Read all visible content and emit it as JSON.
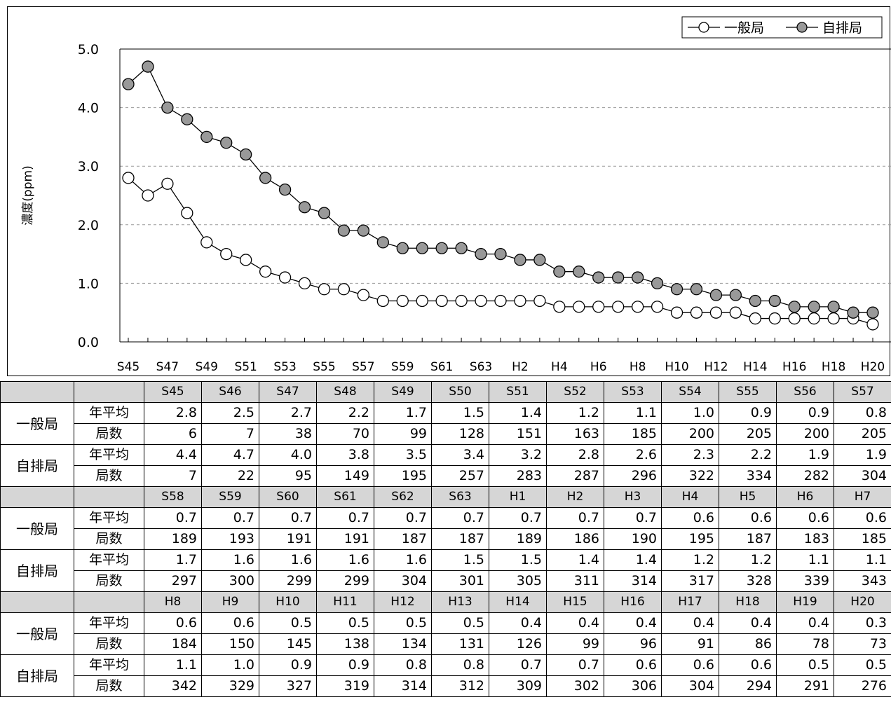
{
  "chart_data": {
    "type": "line",
    "ylabel": "濃度(ppm)",
    "ylim": [
      0,
      5
    ],
    "yticks": [
      "0.0",
      "1.0",
      "2.0",
      "3.0",
      "4.0",
      "5.0"
    ],
    "x": [
      "S45",
      "S46",
      "S47",
      "S48",
      "S49",
      "S50",
      "S51",
      "S52",
      "S53",
      "S54",
      "S55",
      "S56",
      "S57",
      "S58",
      "S59",
      "S60",
      "S61",
      "S62",
      "S63",
      "H1",
      "H2",
      "H3",
      "H4",
      "H5",
      "H6",
      "H7",
      "H8",
      "H9",
      "H10",
      "H11",
      "H12",
      "H13",
      "H14",
      "H15",
      "H16",
      "H17",
      "H18",
      "H19",
      "H20"
    ],
    "x_tick_labels": [
      "S45",
      "S47",
      "S49",
      "S51",
      "S53",
      "S55",
      "S57",
      "S59",
      "S61",
      "S63",
      "H2",
      "H4",
      "H6",
      "H8",
      "H10",
      "H12",
      "H14",
      "H16",
      "H18",
      "H20"
    ],
    "grid": "horizontal-dashed",
    "legend_position": "top-right",
    "series": [
      {
        "name": "一般局",
        "marker": "open-circle",
        "color": "#ffffff",
        "values": [
          2.8,
          2.5,
          2.7,
          2.2,
          1.7,
          1.5,
          1.4,
          1.2,
          1.1,
          1.0,
          0.9,
          0.9,
          0.8,
          0.7,
          0.7,
          0.7,
          0.7,
          0.7,
          0.7,
          0.7,
          0.7,
          0.7,
          0.6,
          0.6,
          0.6,
          0.6,
          0.6,
          0.6,
          0.5,
          0.5,
          0.5,
          0.5,
          0.4,
          0.4,
          0.4,
          0.4,
          0.4,
          0.4,
          0.3
        ]
      },
      {
        "name": "自排局",
        "marker": "filled-circle",
        "color": "#999999",
        "values": [
          4.4,
          4.7,
          4.0,
          3.8,
          3.5,
          3.4,
          3.2,
          2.8,
          2.6,
          2.3,
          2.2,
          1.9,
          1.9,
          1.7,
          1.6,
          1.6,
          1.6,
          1.6,
          1.5,
          1.5,
          1.4,
          1.4,
          1.2,
          1.2,
          1.1,
          1.1,
          1.1,
          1.0,
          0.9,
          0.9,
          0.8,
          0.8,
          0.7,
          0.7,
          0.6,
          0.6,
          0.6,
          0.5,
          0.5
        ]
      }
    ]
  },
  "table": {
    "group_labels": [
      "一般局",
      "自排局"
    ],
    "metric_labels": [
      "年平均",
      "局数"
    ],
    "blocks": [
      {
        "years": [
          "S45",
          "S46",
          "S47",
          "S48",
          "S49",
          "S50",
          "S51",
          "S52",
          "S53",
          "S54",
          "S55",
          "S56",
          "S57"
        ],
        "rows": [
          [
            "2.8",
            "2.5",
            "2.7",
            "2.2",
            "1.7",
            "1.5",
            "1.4",
            "1.2",
            "1.1",
            "1.0",
            "0.9",
            "0.9",
            "0.8"
          ],
          [
            "6",
            "7",
            "38",
            "70",
            "99",
            "128",
            "151",
            "163",
            "185",
            "200",
            "205",
            "200",
            "205"
          ],
          [
            "4.4",
            "4.7",
            "4.0",
            "3.8",
            "3.5",
            "3.4",
            "3.2",
            "2.8",
            "2.6",
            "2.3",
            "2.2",
            "1.9",
            "1.9"
          ],
          [
            "7",
            "22",
            "95",
            "149",
            "195",
            "257",
            "283",
            "287",
            "296",
            "322",
            "334",
            "282",
            "304"
          ]
        ]
      },
      {
        "years": [
          "S58",
          "S59",
          "S60",
          "S61",
          "S62",
          "S63",
          "H1",
          "H2",
          "H3",
          "H4",
          "H5",
          "H6",
          "H7"
        ],
        "rows": [
          [
            "0.7",
            "0.7",
            "0.7",
            "0.7",
            "0.7",
            "0.7",
            "0.7",
            "0.7",
            "0.7",
            "0.6",
            "0.6",
            "0.6",
            "0.6"
          ],
          [
            "189",
            "193",
            "191",
            "191",
            "187",
            "187",
            "189",
            "186",
            "190",
            "195",
            "187",
            "183",
            "185"
          ],
          [
            "1.7",
            "1.6",
            "1.6",
            "1.6",
            "1.6",
            "1.5",
            "1.5",
            "1.4",
            "1.4",
            "1.2",
            "1.2",
            "1.1",
            "1.1"
          ],
          [
            "297",
            "300",
            "299",
            "299",
            "304",
            "301",
            "305",
            "311",
            "314",
            "317",
            "328",
            "339",
            "343"
          ]
        ]
      },
      {
        "years": [
          "H8",
          "H9",
          "H10",
          "H11",
          "H12",
          "H13",
          "H14",
          "H15",
          "H16",
          "H17",
          "H18",
          "H19",
          "H20"
        ],
        "rows": [
          [
            "0.6",
            "0.6",
            "0.5",
            "0.5",
            "0.5",
            "0.5",
            "0.4",
            "0.4",
            "0.4",
            "0.4",
            "0.4",
            "0.4",
            "0.3"
          ],
          [
            "184",
            "150",
            "145",
            "138",
            "134",
            "131",
            "126",
            "99",
            "96",
            "91",
            "86",
            "78",
            "73"
          ],
          [
            "1.1",
            "1.0",
            "0.9",
            "0.9",
            "0.8",
            "0.8",
            "0.7",
            "0.7",
            "0.6",
            "0.6",
            "0.6",
            "0.5",
            "0.5"
          ],
          [
            "342",
            "329",
            "327",
            "319",
            "314",
            "312",
            "309",
            "302",
            "306",
            "304",
            "294",
            "291",
            "276"
          ]
        ]
      }
    ]
  }
}
